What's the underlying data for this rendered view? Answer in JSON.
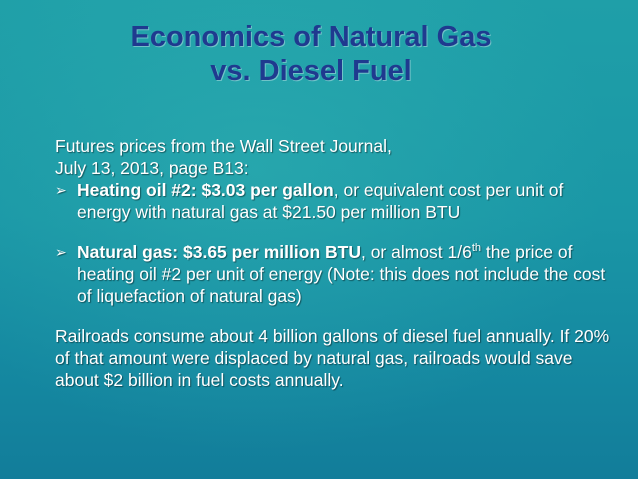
{
  "title": {
    "line1": "Economics of Natural Gas",
    "line2": "vs. Diesel Fuel"
  },
  "intro": {
    "line1": "Futures prices from the Wall Street Journal,",
    "line2": "July 13, 2013, page B13:"
  },
  "bullets": [
    {
      "icon": "arrow-right-icon",
      "bold": "Heating oil #2: $3.03 per gallon",
      "text": ", or equivalent cost per unit of energy with natural gas at $21.50 per million BTU"
    },
    {
      "icon": "arrow-right-icon",
      "bold": "Natural gas: $3.65 per million BTU",
      "text_pre": ", or almost 1/6",
      "sup": "th",
      "text_post": " the price of heating oil #2 per unit of energy (Note: this does not include the cost of liquefaction of natural gas)"
    }
  ],
  "closing": "Railroads consume about 4 billion gallons of diesel fuel annually. If 20% of that amount were displaced by natural gas, railroads would save about $2 billion in fuel costs annually.",
  "colors": {
    "title": "#1f3a8f",
    "text": "#ffffff",
    "background": "#1a97a6"
  }
}
